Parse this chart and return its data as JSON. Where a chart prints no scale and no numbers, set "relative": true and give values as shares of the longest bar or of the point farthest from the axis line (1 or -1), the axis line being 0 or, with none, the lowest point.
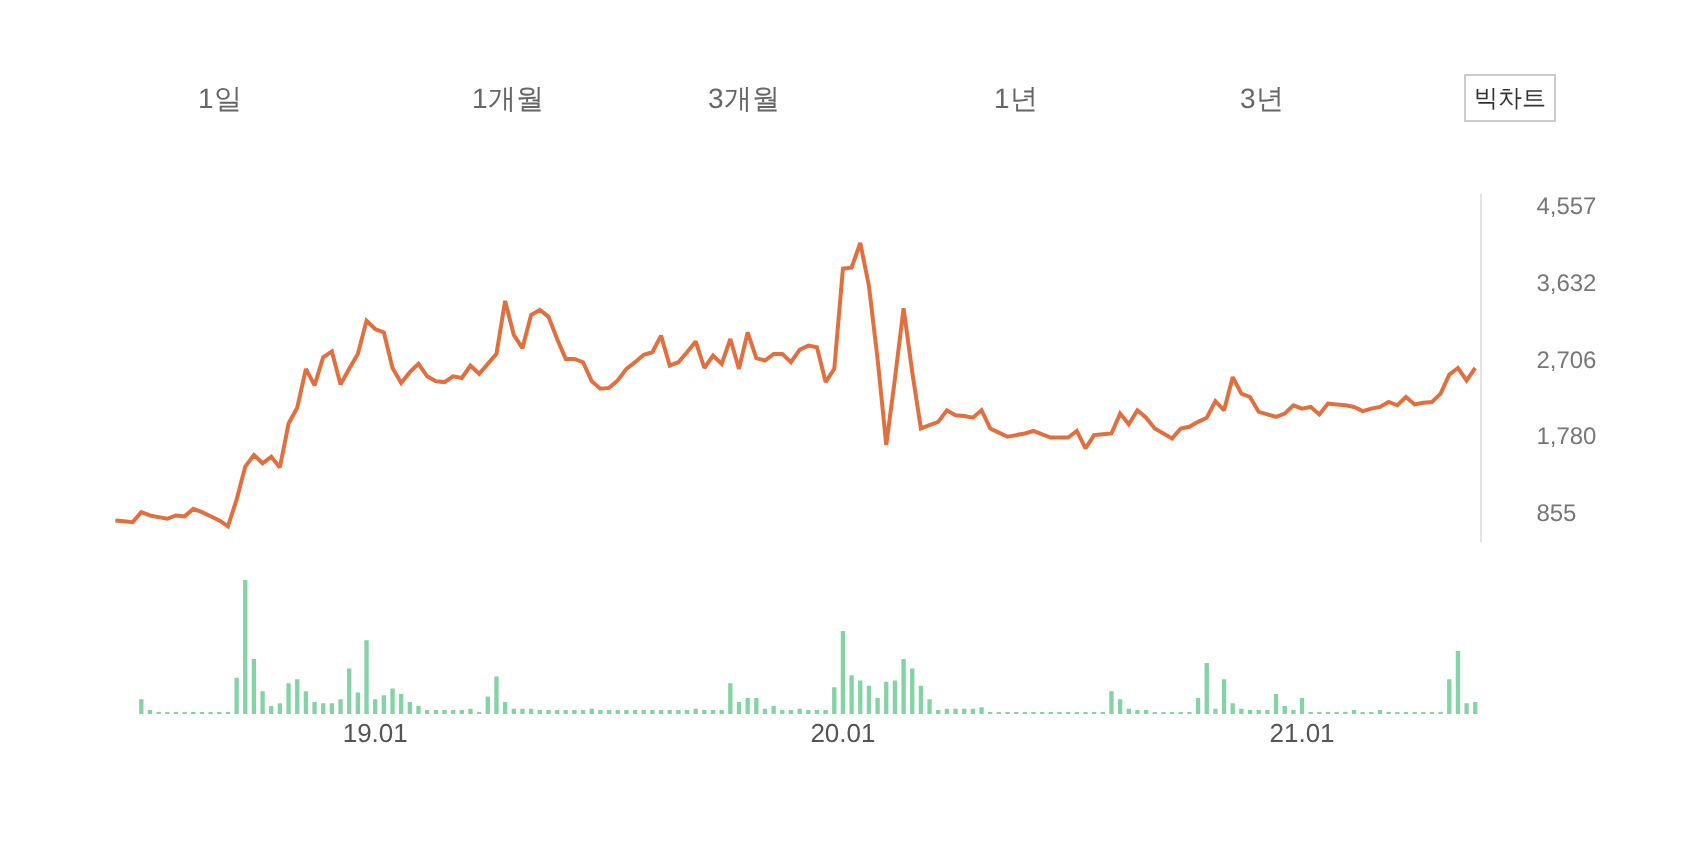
{
  "chart_data": [
    {
      "type": "line",
      "color": "#e2703f",
      "annotations": [
        "1일",
        "1개월",
        "3개월",
        "1년",
        "3년",
        "빅차트"
      ],
      "categories": [
        null,
        null,
        null,
        null,
        null,
        null,
        null,
        null,
        null,
        null,
        null,
        null,
        null,
        null,
        null,
        null,
        null,
        null,
        null,
        null,
        null,
        null,
        null,
        null,
        null,
        null,
        null,
        null,
        null,
        null,
        "19.01",
        null,
        null,
        null,
        null,
        null,
        null,
        null,
        null,
        null,
        null,
        null,
        null,
        null,
        null,
        null,
        null,
        null,
        null,
        null,
        null,
        null,
        null,
        null,
        null,
        null,
        null,
        null,
        null,
        null,
        null,
        null,
        null,
        null,
        null,
        null,
        null,
        null,
        null,
        null,
        null,
        null,
        null,
        null,
        null,
        null,
        null,
        null,
        null,
        null,
        null,
        null,
        null,
        null,
        "20.01",
        null,
        null,
        null,
        null,
        null,
        null,
        null,
        null,
        null,
        null,
        null,
        null,
        null,
        null,
        null,
        null,
        null,
        null,
        null,
        null,
        null,
        null,
        null,
        null,
        null,
        null,
        null,
        null,
        null,
        null,
        null,
        null,
        null,
        null,
        null,
        null,
        null,
        null,
        null,
        null,
        null,
        null,
        null,
        null,
        null,
        null,
        null,
        null,
        null,
        null,
        null,
        null,
        "21.01",
        null,
        null,
        null,
        null,
        null,
        null,
        null,
        null,
        null,
        null,
        null,
        null,
        null,
        null,
        null,
        null,
        null,
        null,
        null,
        null
      ],
      "values": [
        760,
        750,
        740,
        860,
        820,
        800,
        780,
        820,
        810,
        900,
        860,
        810,
        760,
        690,
        1010,
        1410,
        1550,
        1450,
        1530,
        1400,
        1930,
        2120,
        2590,
        2390,
        2730,
        2800,
        2400,
        2590,
        2770,
        3170,
        3070,
        3030,
        2600,
        2420,
        2550,
        2650,
        2500,
        2440,
        2430,
        2500,
        2480,
        2630,
        2530,
        2650,
        2770,
        3410,
        3000,
        2840,
        3240,
        3300,
        3220,
        2950,
        2710,
        2710,
        2670,
        2440,
        2350,
        2360,
        2450,
        2590,
        2670,
        2760,
        2790,
        2990,
        2630,
        2670,
        2790,
        2920,
        2600,
        2750,
        2650,
        2950,
        2590,
        3030,
        2720,
        2690,
        2770,
        2770,
        2670,
        2820,
        2870,
        2850,
        2430,
        2590,
        3800,
        3810,
        4110,
        3590,
        2710,
        1670,
        2470,
        3320,
        2550,
        1870,
        1910,
        1950,
        2090,
        2030,
        2020,
        2000,
        2090,
        1870,
        1820,
        1770,
        1790,
        1810,
        1840,
        1800,
        1760,
        1760,
        1760,
        1840,
        1630,
        1790,
        1800,
        1810,
        2050,
        1920,
        2090,
        2000,
        1870,
        1810,
        1750,
        1870,
        1890,
        1950,
        2000,
        2200,
        2090,
        2490,
        2290,
        2250,
        2070,
        2040,
        2010,
        2050,
        2150,
        2110,
        2130,
        2040,
        2170,
        2160,
        2150,
        2130,
        2080,
        2110,
        2130,
        2190,
        2150,
        2250,
        2160,
        2180,
        2190,
        2290,
        2520,
        2600,
        2450,
        2600
      ],
      "ylim": [
        500,
        4700
      ],
      "yticks": [
        {
          "value": 855,
          "label": "855"
        },
        {
          "value": 1780,
          "label": "1,780"
        },
        {
          "value": 2706,
          "label": "2,706"
        },
        {
          "value": 3632,
          "label": "3,632"
        },
        {
          "value": 4557,
          "label": "4,557"
        }
      ],
      "tick_labels": "y"
    },
    {
      "type": "bar",
      "relative": true,
      "color": "#84d3a4",
      "categories": [
        null,
        null,
        null,
        null,
        null,
        null,
        null,
        null,
        null,
        null,
        null,
        null,
        null,
        null,
        null,
        null,
        null,
        null,
        null,
        null,
        null,
        null,
        null,
        null,
        null,
        null,
        null,
        null,
        null,
        null,
        "19.01",
        null,
        null,
        null,
        null,
        null,
        null,
        null,
        null,
        null,
        null,
        null,
        null,
        null,
        null,
        null,
        null,
        null,
        null,
        null,
        null,
        null,
        null,
        null,
        null,
        null,
        null,
        null,
        null,
        null,
        null,
        null,
        null,
        null,
        null,
        null,
        null,
        null,
        null,
        null,
        null,
        null,
        null,
        null,
        null,
        null,
        null,
        null,
        null,
        null,
        null,
        null,
        null,
        null,
        "20.01",
        null,
        null,
        null,
        null,
        null,
        null,
        null,
        null,
        null,
        null,
        null,
        null,
        null,
        null,
        null,
        null,
        null,
        null,
        null,
        null,
        null,
        null,
        null,
        null,
        null,
        null,
        null,
        null,
        null,
        null,
        null,
        null,
        null,
        null,
        null,
        null,
        null,
        null,
        null,
        null,
        null,
        null,
        null,
        null,
        null,
        null,
        null,
        null,
        null,
        null,
        null,
        null,
        "21.01",
        null,
        null,
        null,
        null,
        null,
        null,
        null,
        null,
        null,
        null,
        null,
        null,
        null,
        null,
        null,
        null,
        null,
        null,
        null,
        null
      ],
      "values": [
        null,
        null,
        null,
        0.11,
        0.03,
        0.01,
        0.01,
        0.01,
        0.01,
        0.01,
        0.01,
        0.01,
        0.01,
        0.01,
        0.27,
        1,
        0.41,
        0.17,
        0.06,
        0.08,
        0.23,
        0.26,
        0.17,
        0.09,
        0.08,
        0.08,
        0.11,
        0.34,
        0.16,
        0.55,
        0.11,
        0.14,
        0.19,
        0.15,
        0.09,
        0.06,
        0.03,
        0.03,
        0.03,
        0.03,
        0.03,
        0.04,
        0.01,
        0.13,
        0.28,
        0.09,
        0.04,
        0.04,
        0.04,
        0.02,
        0.02,
        0.02,
        0.02,
        0.02,
        0.02,
        0.04,
        0.02,
        0.02,
        0.03,
        0.02,
        0.03,
        0.02,
        0.02,
        0.03,
        0.02,
        0.02,
        0.02,
        0.04,
        0.02,
        0.02,
        0.02,
        0.23,
        0.09,
        0.12,
        0.12,
        0.04,
        0.06,
        0.03,
        0.03,
        0.04,
        0.02,
        0.02,
        0.02,
        0.2,
        0.62,
        0.29,
        0.25,
        0.21,
        0.12,
        0.24,
        0.25,
        0.41,
        0.34,
        0.21,
        0.11,
        0.03,
        0.04,
        0.04,
        0.04,
        0.04,
        0.05,
        0.01,
        0.01,
        0.01,
        0.01,
        0.01,
        0.01,
        0.01,
        0.01,
        0.01,
        0.01,
        0.01,
        0.01,
        0.01,
        0.01,
        0.17,
        0.11,
        0.04,
        0.03,
        0.03,
        0.01,
        0.01,
        0.01,
        0.01,
        0.01,
        0.12,
        0.38,
        0.04,
        0.26,
        0.08,
        0.04,
        0.03,
        0.03,
        0.03,
        0.15,
        0.06,
        0.02,
        0.12,
        0.01,
        0.01,
        0.01,
        0.01,
        0.01,
        0.02,
        0.01,
        0.01,
        0.03,
        0.01,
        0.01,
        0.01,
        0.01,
        0.01,
        0.01,
        0.01,
        0.26,
        0.47,
        0.08,
        0.09
      ]
    }
  ]
}
